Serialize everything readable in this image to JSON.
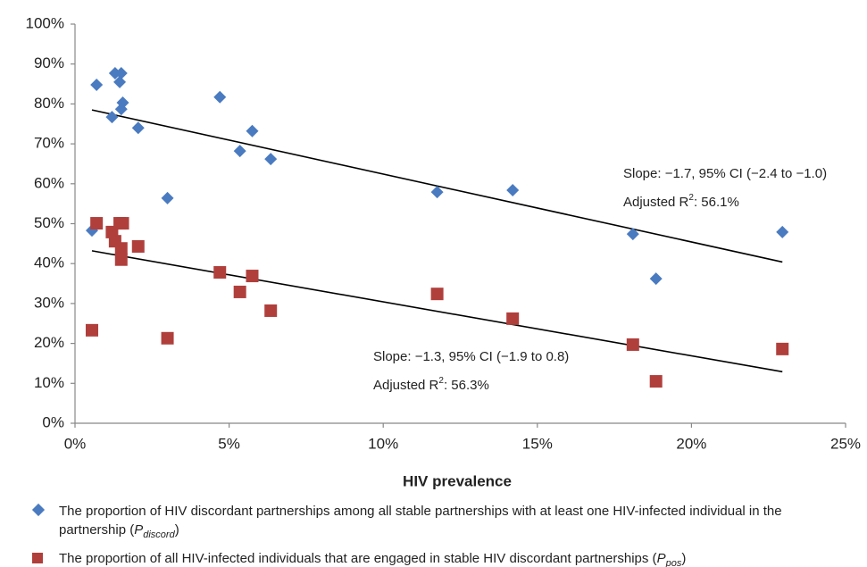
{
  "chart_data": {
    "type": "scatter",
    "x_label": "HIV prevalence",
    "xlim": [
      0,
      25
    ],
    "xticks": [
      {
        "value": 0,
        "label": "0%"
      },
      {
        "value": 5,
        "label": "5%"
      },
      {
        "value": 10,
        "label": "10%"
      },
      {
        "value": 15,
        "label": "15%"
      },
      {
        "value": 20,
        "label": "20%"
      },
      {
        "value": 25,
        "label": "25%"
      }
    ],
    "ylim": [
      0,
      100
    ],
    "yticks": [
      {
        "value": 0,
        "label": "0%"
      },
      {
        "value": 10,
        "label": "10%"
      },
      {
        "value": 20,
        "label": "20%"
      },
      {
        "value": 30,
        "label": "30%"
      },
      {
        "value": 40,
        "label": "40%"
      },
      {
        "value": 50,
        "label": "50%"
      },
      {
        "value": 60,
        "label": "60%"
      },
      {
        "value": 70,
        "label": "70%"
      },
      {
        "value": 80,
        "label": "80%"
      },
      {
        "value": 90,
        "label": "90%"
      },
      {
        "value": 100,
        "label": "100%"
      }
    ],
    "x": [
      0.55,
      0.7,
      1.2,
      1.3,
      1.45,
      1.5,
      1.55,
      1.5,
      2.05,
      3.0,
      4.7,
      5.35,
      5.75,
      6.35,
      11.75,
      14.2,
      18.1,
      18.85,
      22.95
    ],
    "series": [
      {
        "marker": "diamond",
        "color": "#4a7bc1",
        "legend": {
          "text": "The proportion of HIV discordant partnerships among all stable partnerships with at least one HIV-infected individual in the partnership (",
          "symbol": "P",
          "subscript": "discord",
          "close": ")"
        },
        "values": [
          48.3,
          84.8,
          76.7,
          87.7,
          85.5,
          87.7,
          80.3,
          78.7,
          74.0,
          56.4,
          81.7,
          68.2,
          73.2,
          66.2,
          57.9,
          58.4,
          47.4,
          36.2,
          47.9
        ],
        "trend": {
          "x": [
            0.55,
            22.95
          ],
          "y": [
            78.5,
            40.4
          ]
        },
        "annotation": {
          "slope": "Slope: −1.7, 95% CI (−2.4 to −1.0)",
          "r2": "Adjusted R",
          "sup": "2",
          "r2_value": ": 56.1%"
        }
      },
      {
        "marker": "square",
        "color": "#b03f3c",
        "legend": {
          "text": "The proportion of all HIV-infected individuals that are engaged in stable HIV discordant partnerships (",
          "symbol": "P",
          "subscript": "pos",
          "close": ")"
        },
        "values": [
          23.3,
          50.1,
          47.9,
          45.6,
          50.1,
          43.8,
          50.1,
          41.0,
          44.3,
          21.3,
          37.8,
          32.9,
          36.9,
          28.2,
          32.4,
          26.2,
          19.7,
          10.5,
          18.6
        ],
        "trend": {
          "x": [
            0.55,
            22.95
          ],
          "y": [
            43.2,
            12.9
          ]
        },
        "annotation": {
          "slope": "Slope: −1.3, 95%  CI (−1.9 to 0.8)",
          "r2": "Adjusted R",
          "sup": "2",
          "r2_value": ": 56.3%"
        }
      }
    ]
  }
}
